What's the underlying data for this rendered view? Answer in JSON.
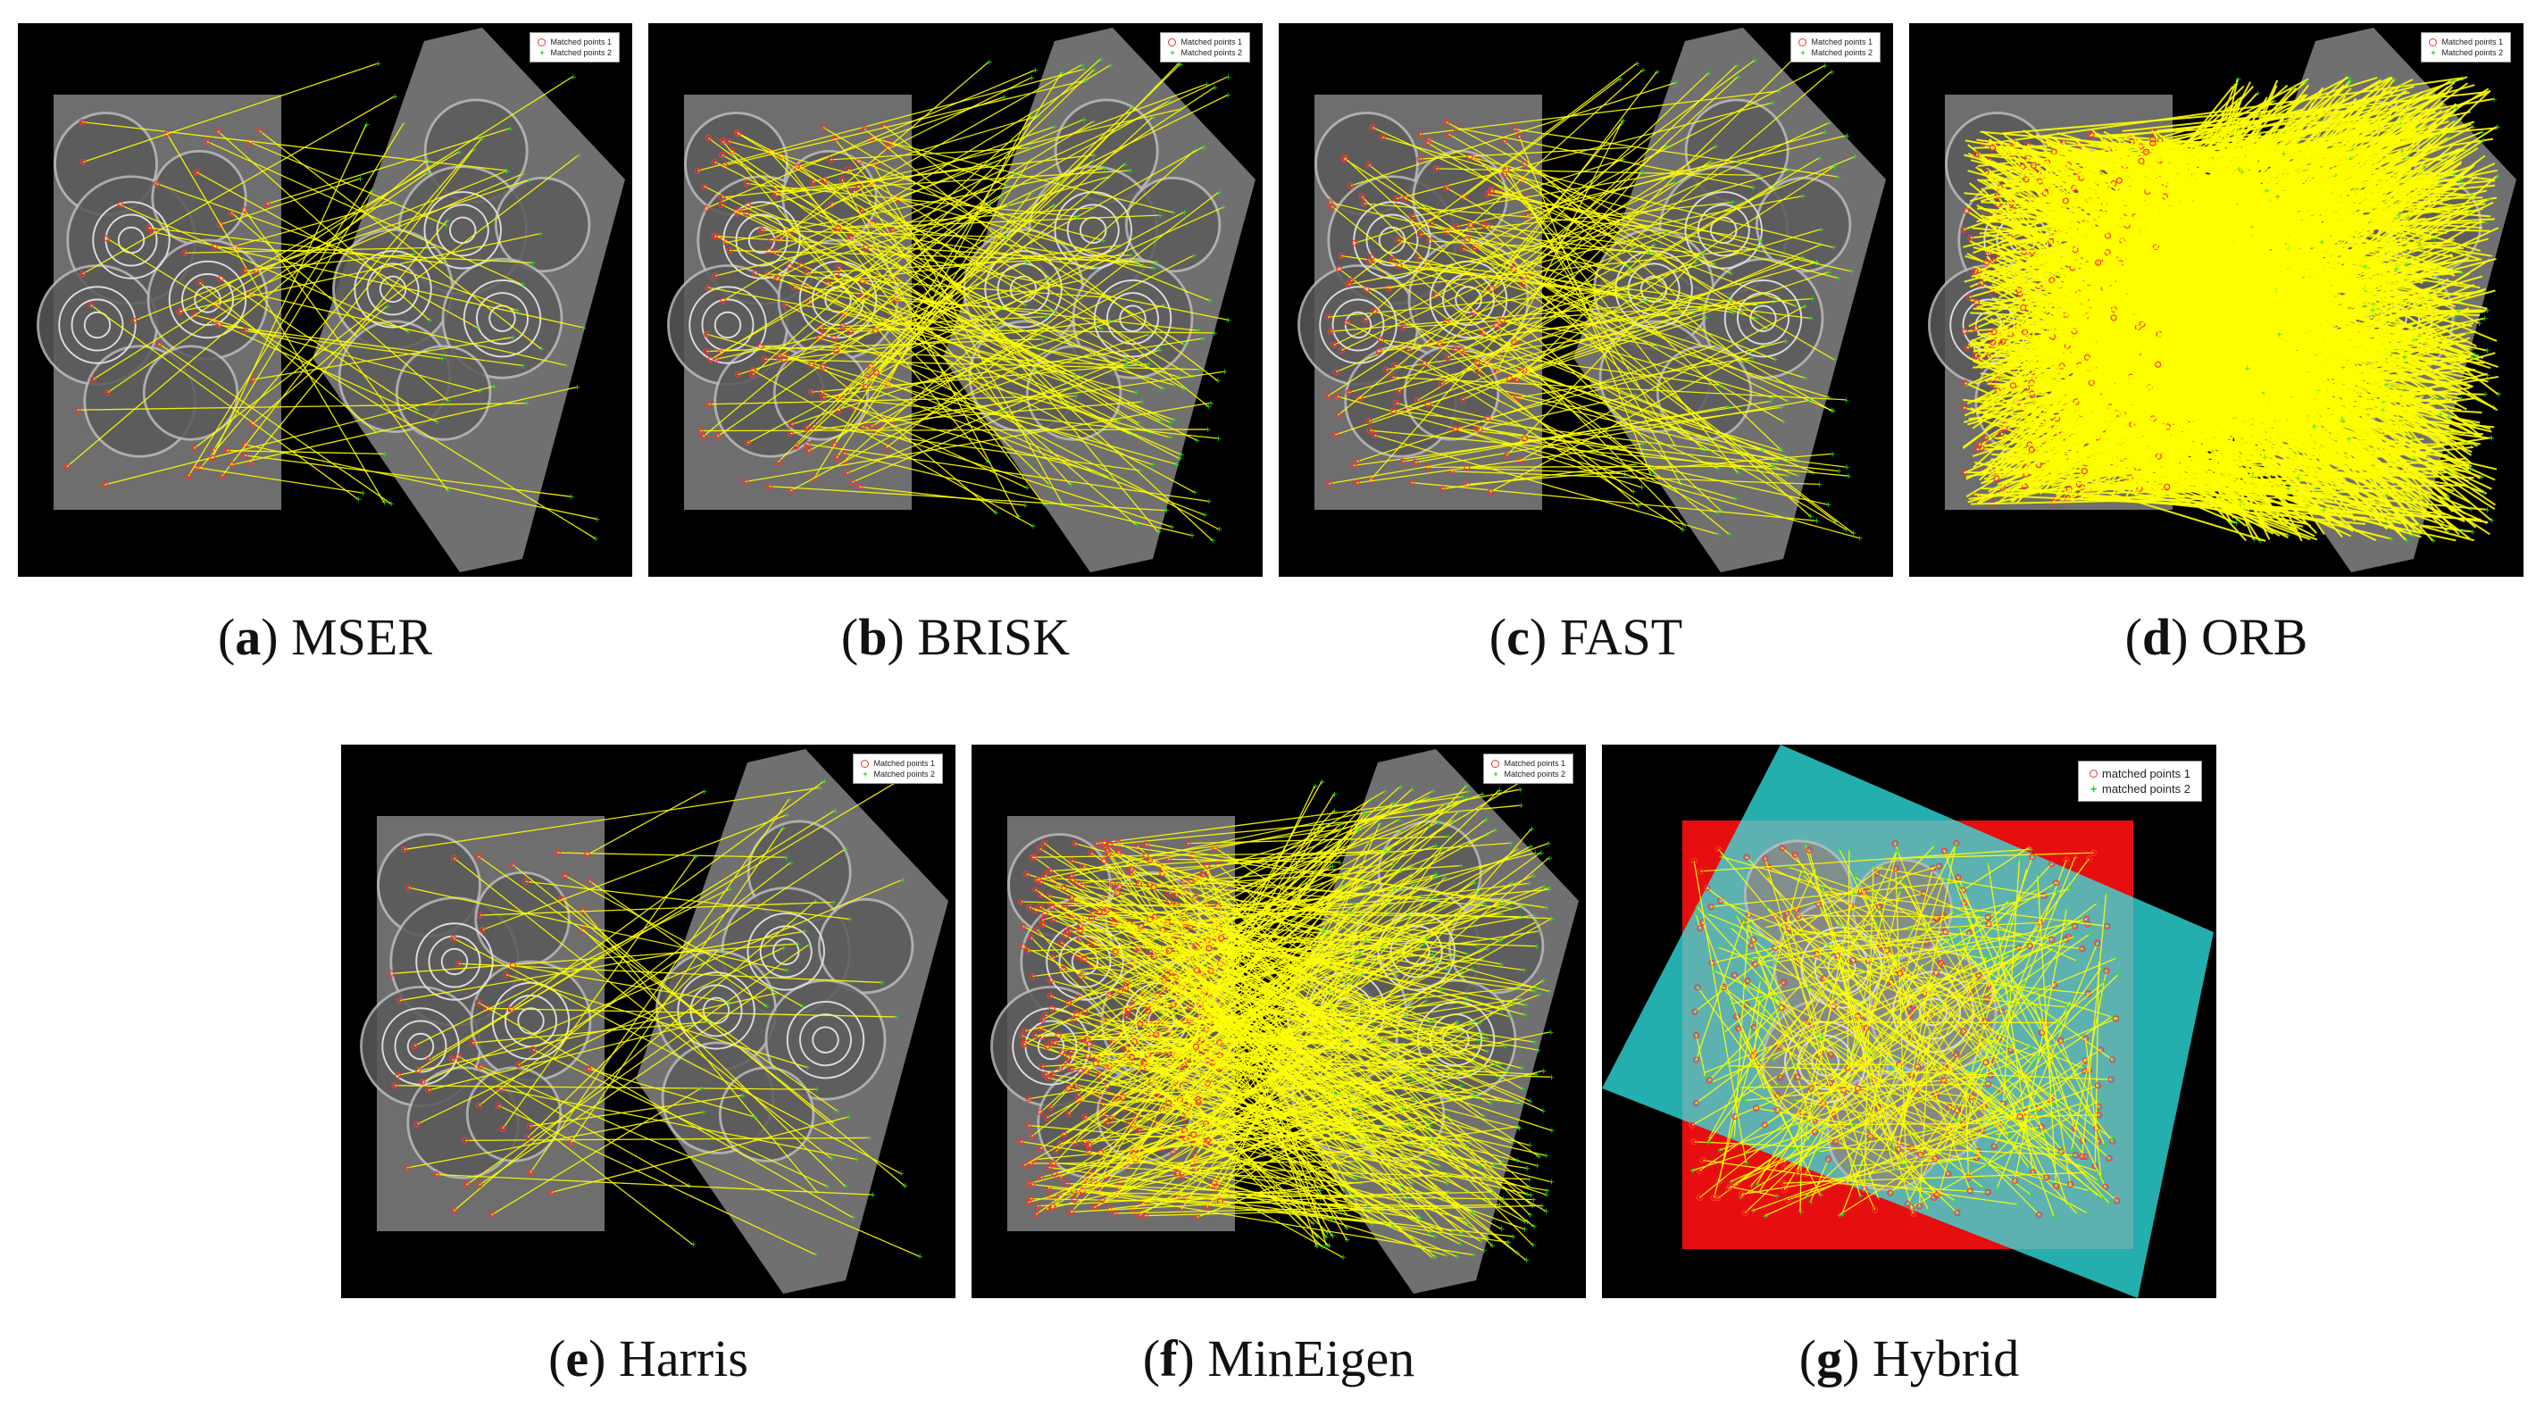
{
  "panels": [
    {
      "letter": "a",
      "method": "MSER",
      "legend": [
        "Matched points 1",
        "Matched points 2"
      ],
      "density": "sparse"
    },
    {
      "letter": "b",
      "method": "BRISK",
      "legend": [
        "Matched points 1",
        "Matched points 2"
      ],
      "density": "medium"
    },
    {
      "letter": "c",
      "method": "FAST",
      "legend": [
        "Matched points 1",
        "Matched points 2"
      ],
      "density": "medium"
    },
    {
      "letter": "d",
      "method": "ORB",
      "legend": [
        "Matched points 1",
        "Matched points 2"
      ],
      "density": "saturated"
    },
    {
      "letter": "e",
      "method": "Harris",
      "legend": [
        "Matched points 1",
        "Matched points 2"
      ],
      "density": "sparse"
    },
    {
      "letter": "f",
      "method": "MinEigen",
      "legend": [
        "Matched points 1",
        "Matched points 2"
      ],
      "density": "dense"
    },
    {
      "letter": "g",
      "method": "Hybrid",
      "legend": [
        "matched points 1",
        "matched points 2"
      ],
      "density": "overlay"
    }
  ],
  "colors": {
    "match_line": "#ffff00",
    "points_1": "#ff3333",
    "points_2": "#33dd33",
    "background": "#000000",
    "hybrid_red": "#ff1010",
    "hybrid_cyan": "#30e8e8"
  }
}
